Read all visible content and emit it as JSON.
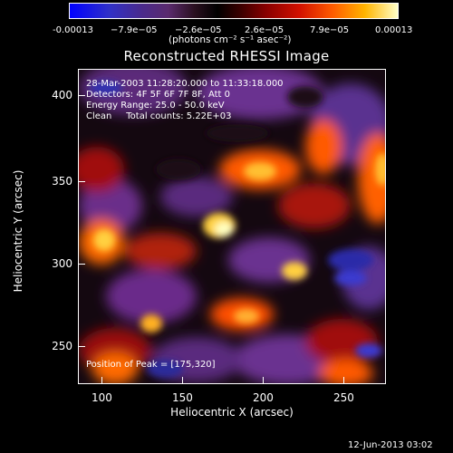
{
  "colorbar": {
    "ticks": [
      "-0.00013",
      "−7.9e−05",
      "−2.6e−05",
      "2.6e−05",
      "7.9e−05",
      "0.00013"
    ],
    "units": "(photons cm⁻² s⁻¹ asec⁻²)"
  },
  "title": "Reconstructed RHESSI Image",
  "annotations": {
    "line1": "28-Mar-2003 11:28:20.000 to 11:33:18.000",
    "line2": "Detectors: 4F 5F 6F 7F 8F, Att 0",
    "line3": "Energy Range: 25.0 - 50.0 keV",
    "line4": "Clean     Total counts: 5.22E+03",
    "peak": "Position of Peak = [175,320]"
  },
  "axes": {
    "xlabel": "Heliocentric X (arcsec)",
    "ylabel": "Heliocentric Y (arcsec)",
    "xticks": [
      "100",
      "150",
      "200",
      "250"
    ],
    "yticks": [
      "400",
      "350",
      "300",
      "250"
    ]
  },
  "timestamp": "12-Jun-2013 03:02"
}
